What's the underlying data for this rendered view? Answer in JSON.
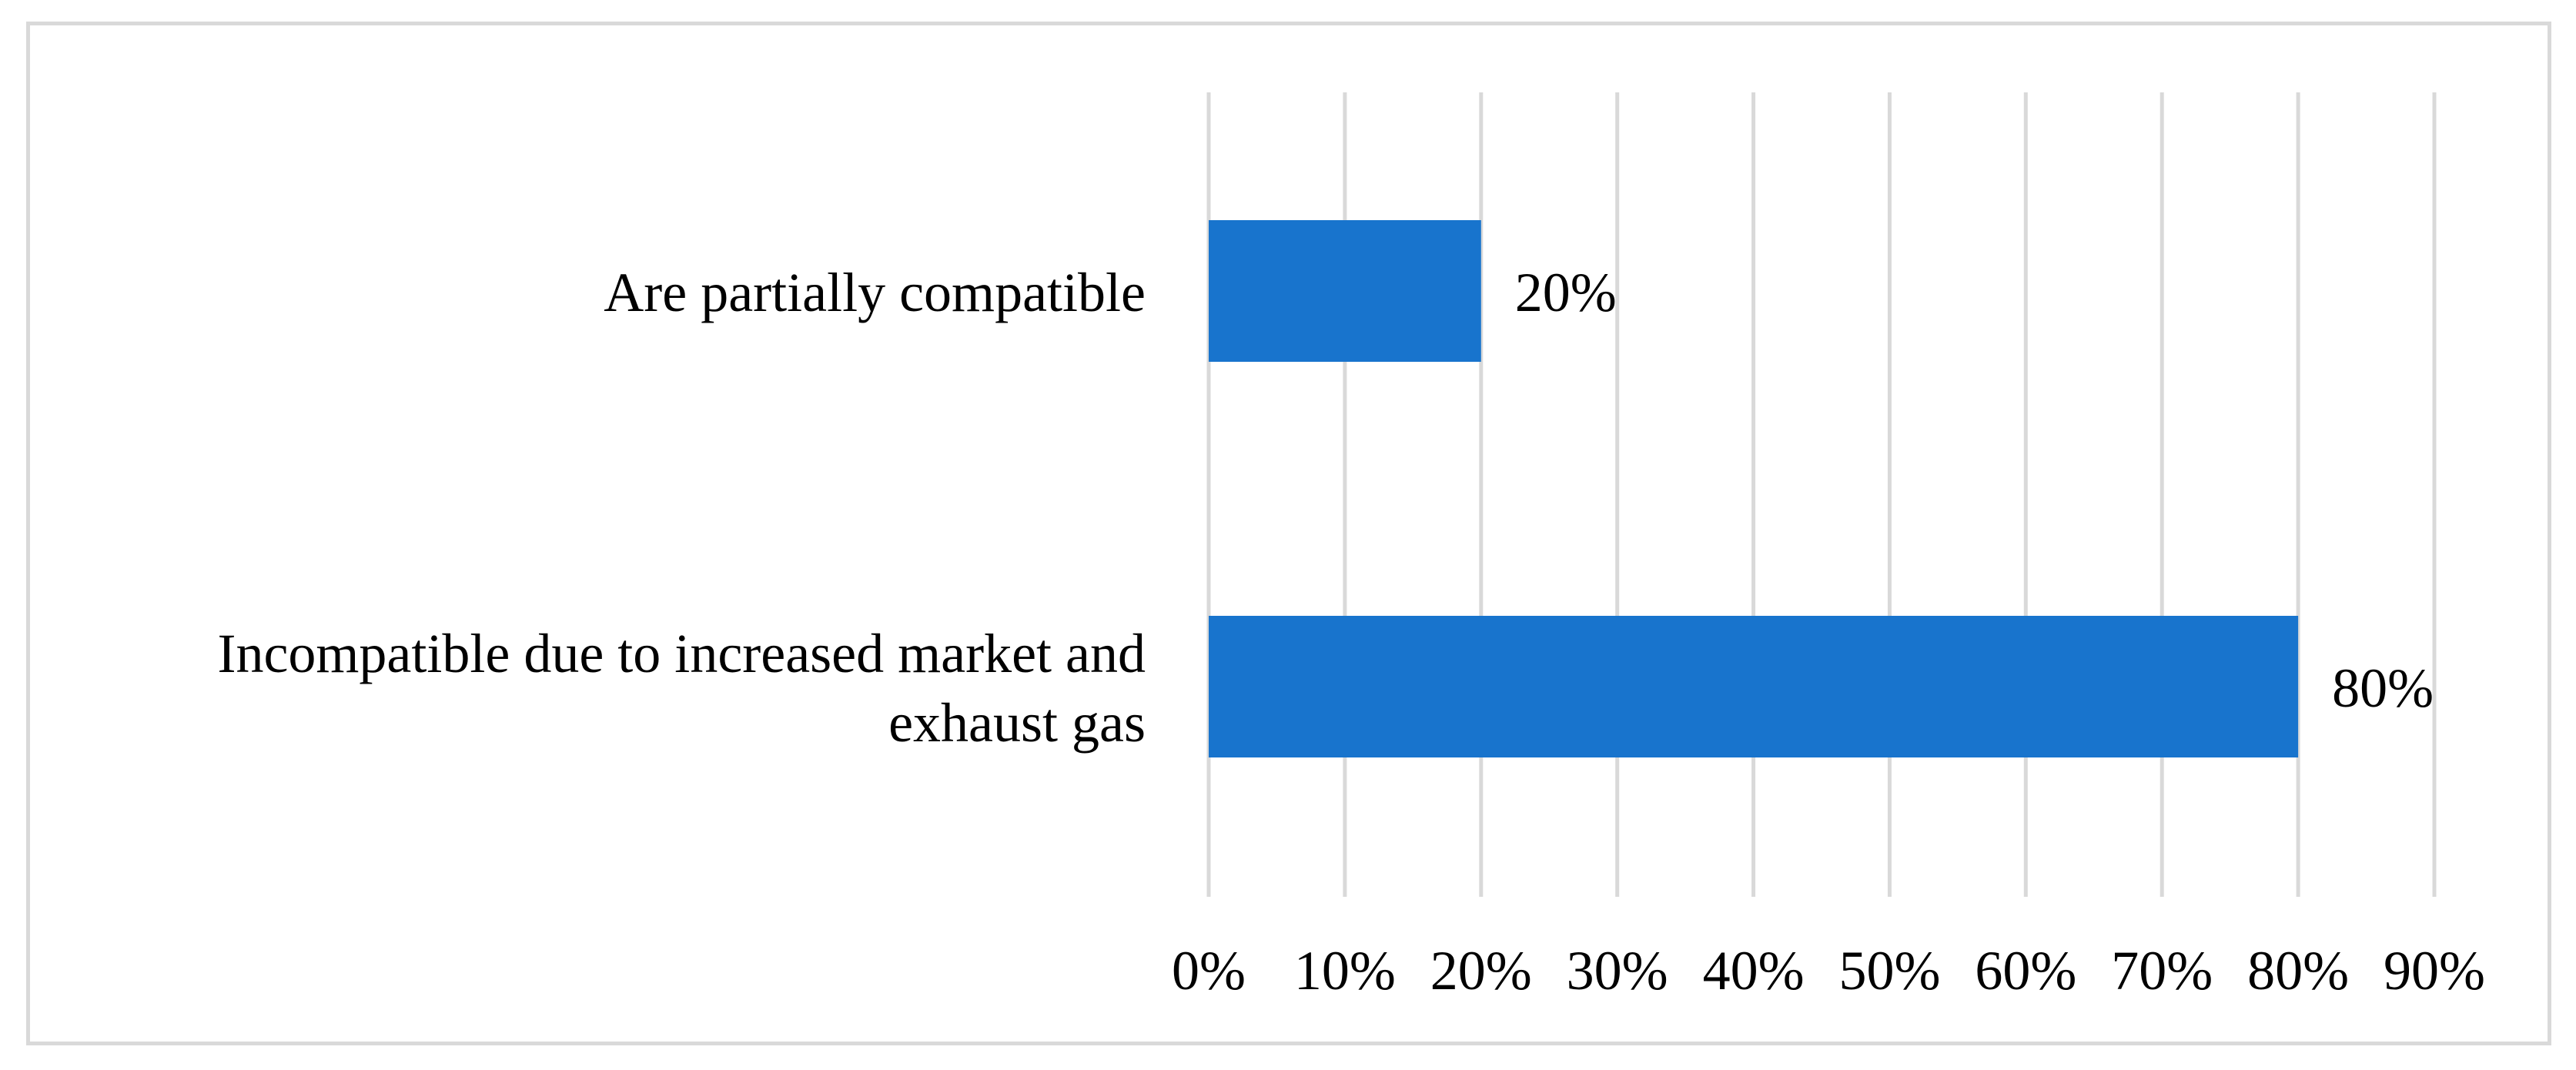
{
  "chart_data": {
    "type": "bar",
    "orientation": "horizontal",
    "categories": [
      [
        "Are partially compatible"
      ],
      [
        "Incompatible due to increased market and",
        "exhaust gas"
      ]
    ],
    "values": [
      20,
      80
    ],
    "value_labels": [
      "20%",
      "80%"
    ],
    "xlim": [
      0,
      90
    ],
    "x_ticks": [
      0,
      10,
      20,
      30,
      40,
      50,
      60,
      70,
      80,
      90
    ],
    "x_tick_labels": [
      "0%",
      "10%",
      "20%",
      "30%",
      "40%",
      "50%",
      "60%",
      "70%",
      "80%",
      "90%"
    ],
    "title": "",
    "xlabel": "",
    "ylabel": "",
    "grid": "vertical",
    "legend": "none",
    "colors": {
      "bar": "#1874CD",
      "grid": "#d9d9d9",
      "text": "#000000",
      "frame": "#d9d9d9"
    }
  }
}
